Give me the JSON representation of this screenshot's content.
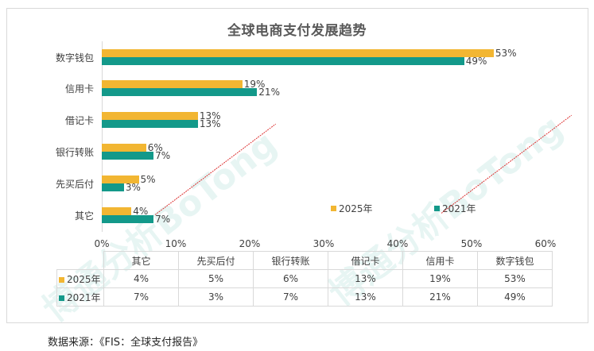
{
  "title": "全球电商支付发展趋势",
  "source": "数据来源：《FIS：全球支付报告》",
  "watermark": "博通分析BoTong",
  "colors": {
    "y2025": "#F2B632",
    "y2021": "#13998A"
  },
  "legend": {
    "y2025": "2025年",
    "y2021": "2021年"
  },
  "axis": {
    "ticks": [
      "0%",
      "10%",
      "20%",
      "30%",
      "40%",
      "50%",
      "60%"
    ]
  },
  "categories_top_to_bottom": [
    {
      "name": "数字钱包",
      "v2025": "53%",
      "v2021": "49%"
    },
    {
      "name": "信用卡",
      "v2025": "19%",
      "v2021": "21%"
    },
    {
      "name": "借记卡",
      "v2025": "13%",
      "v2021": "13%"
    },
    {
      "name": "银行转账",
      "v2025": "6%",
      "v2021": "7%"
    },
    {
      "name": "先买后付",
      "v2025": "5%",
      "v2021": "3%"
    },
    {
      "name": "其它",
      "v2025": "4%",
      "v2021": "7%"
    }
  ],
  "table": {
    "headers": [
      "其它",
      "先买后付",
      "银行转账",
      "借记卡",
      "信用卡",
      "数字钱包"
    ],
    "rows": [
      {
        "label": "2025年",
        "values": [
          "4%",
          "5%",
          "6%",
          "13%",
          "19%",
          "53%"
        ]
      },
      {
        "label": "2021年",
        "values": [
          "7%",
          "3%",
          "7%",
          "13%",
          "21%",
          "49%"
        ]
      }
    ]
  },
  "chart_data": {
    "type": "bar",
    "orientation": "horizontal",
    "title": "全球电商支付发展趋势",
    "categories": [
      "其它",
      "先买后付",
      "银行转账",
      "借记卡",
      "信用卡",
      "数字钱包"
    ],
    "series": [
      {
        "name": "2025年",
        "color": "#F2B632",
        "values": [
          4,
          5,
          6,
          13,
          19,
          53
        ]
      },
      {
        "name": "2021年",
        "color": "#13998A",
        "values": [
          7,
          3,
          7,
          13,
          21,
          49
        ]
      }
    ],
    "xlabel": "",
    "ylabel": "",
    "xlim": [
      0,
      60
    ],
    "xticks": [
      "0%",
      "10%",
      "20%",
      "30%",
      "40%",
      "50%",
      "60%"
    ],
    "grid": false,
    "legend_position": "inside-bottom-right",
    "data_table": true,
    "note": "数据来源：《FIS：全球支付报告》"
  }
}
